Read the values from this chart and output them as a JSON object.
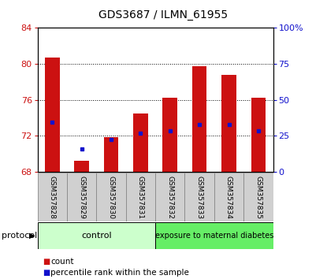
{
  "title": "GDS3687 / ILMN_61955",
  "samples": [
    "GSM357828",
    "GSM357829",
    "GSM357830",
    "GSM357831",
    "GSM357832",
    "GSM357833",
    "GSM357834",
    "GSM357835"
  ],
  "bar_values": [
    80.7,
    69.2,
    71.8,
    74.5,
    76.2,
    79.7,
    78.8,
    76.2
  ],
  "percentile_values": [
    73.5,
    70.5,
    71.6,
    72.3,
    72.5,
    73.2,
    73.2,
    72.5
  ],
  "bar_color": "#cc1111",
  "percentile_color": "#1111cc",
  "ylim_left": [
    68,
    84
  ],
  "yticks_left": [
    68,
    72,
    76,
    80,
    84
  ],
  "ylim_right": [
    0,
    100
  ],
  "yticks_right": [
    0,
    25,
    50,
    75,
    100
  ],
  "yticklabels_right": [
    "0",
    "25",
    "50",
    "75",
    "100%"
  ],
  "baseline": 68,
  "n_control": 4,
  "n_disease": 4,
  "control_label": "control",
  "disease_label": "exposure to maternal diabetes",
  "control_color": "#ccffcc",
  "disease_color": "#66ee66",
  "protocol_label": "protocol",
  "legend_count": "count",
  "legend_pct": "percentile rank within the sample",
  "bar_width": 0.5,
  "title_fontsize": 10,
  "tick_fontsize": 8,
  "xlabel_fontsize": 6.5,
  "left_tick_color": "#cc1111",
  "right_tick_color": "#1111cc",
  "gray_box_color": "#d0d0d0",
  "gray_box_edge": "#888888"
}
